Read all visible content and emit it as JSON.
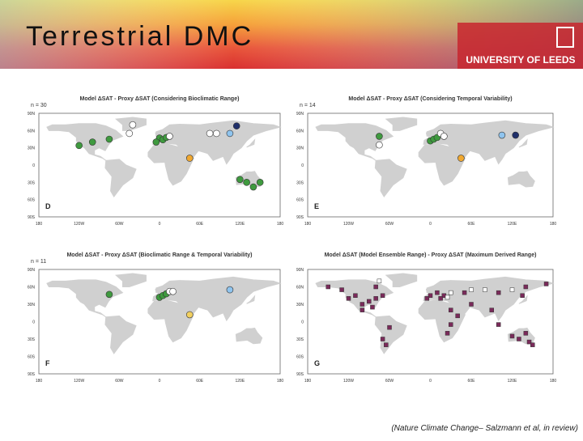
{
  "header": {
    "title": "Terrestrial DMC",
    "logo": "UNIVERSITY OF LEEDS"
  },
  "panels": [
    {
      "title": "Model ΔSAT - Proxy ΔSAT (Considering Bioclimatic Range)",
      "n": "n = 30",
      "letter": "D"
    },
    {
      "title": "Model ΔSAT - Proxy ΔSAT (Considering Temporal Variability)",
      "n": "n = 14",
      "letter": "E"
    },
    {
      "title": "Model ΔSAT - Proxy ΔSAT (Bioclimatic Range & Temporal Variability)",
      "n": "n = 11",
      "letter": "F"
    },
    {
      "title": "Model ΔSAT (Model Ensemble Range) - Proxy ΔSAT (Maximum Derived Range)",
      "letter": "G"
    }
  ],
  "lat_labels": [
    "90N",
    "60N",
    "30N",
    "0",
    "30S",
    "60S",
    "90S"
  ],
  "lon_labels": [
    "180",
    "120W",
    "60W",
    "0",
    "60E",
    "120E",
    "180"
  ],
  "citation": "(Nature Climate Change– Salzmann et al, in review)"
}
